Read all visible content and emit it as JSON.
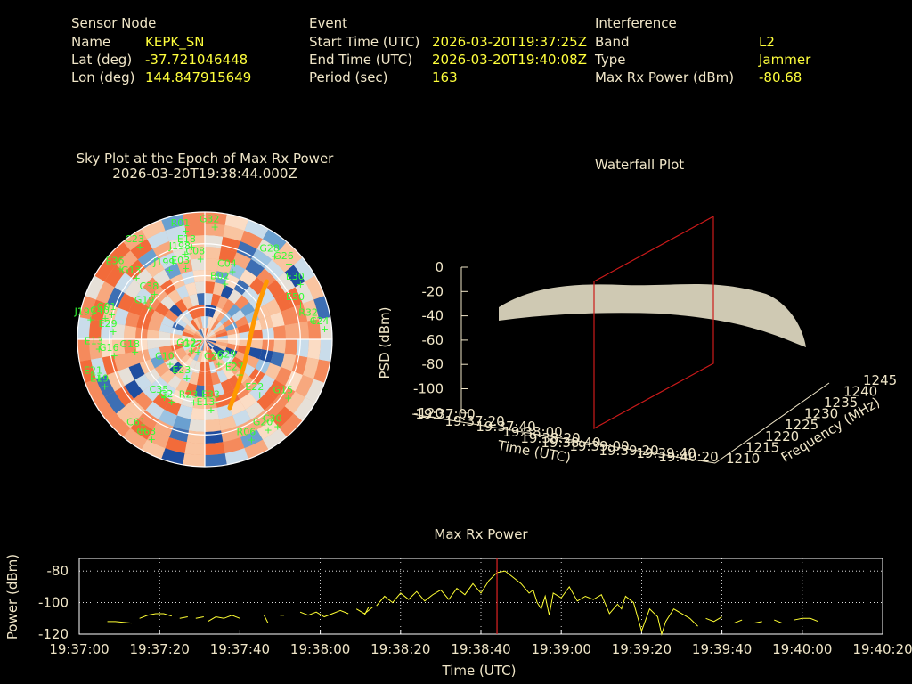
{
  "header": {
    "sensor": {
      "title": "Sensor Node",
      "name_label": "Name",
      "name": "KEPK_SN",
      "lat_label": "Lat (deg)",
      "lat": "-37.721046448",
      "lon_label": "Lon (deg)",
      "lon": "144.847915649"
    },
    "event": {
      "title": "Event",
      "start_label": "Start Time (UTC)",
      "start": "2026-03-20T19:37:25Z",
      "end_label": "End Time (UTC)",
      "end": "2026-03-20T19:40:08Z",
      "period_label": "Period (sec)",
      "period": "163"
    },
    "interference": {
      "title": "Interference",
      "band_label": "Band",
      "band": "L2",
      "type_label": "Type",
      "type": "Jammer",
      "power_label": "Max Rx Power (dBm)",
      "power": "-80.68"
    }
  },
  "chart_data": [
    {
      "type": "scatter",
      "title": "Sky Plot at the Epoch of Max Rx Power",
      "subtitle": "2026-03-20T19:38:44.000Z",
      "polar": true,
      "grid": true,
      "colors": {
        "satellite": "#33ff33",
        "track": "#ff9900",
        "heat_low": "#1f4ea0",
        "heat_high": "#ff7040"
      },
      "satellites": [
        {
          "id": "R01",
          "az": -10,
          "el": 12
        },
        {
          "id": "G32",
          "az": 5,
          "el": 10
        },
        {
          "id": "C23",
          "az": -35,
          "el": 10
        },
        {
          "id": "E18",
          "az": -8,
          "el": 24
        },
        {
          "id": "J198",
          "az": -13,
          "el": 28
        },
        {
          "id": "C08",
          "az": -3,
          "el": 33
        },
        {
          "id": "C04",
          "az": 22,
          "el": 38
        },
        {
          "id": "G28",
          "az": 40,
          "el": 13
        },
        {
          "id": "G26",
          "az": 48,
          "el": 10
        },
        {
          "id": "E30",
          "az": 60,
          "el": 12
        },
        {
          "id": "E36",
          "az": -50,
          "el": 12
        },
        {
          "id": "G13",
          "az": -48,
          "el": 25
        },
        {
          "id": "J199",
          "az": -27,
          "el": 35
        },
        {
          "id": "E03",
          "az": -15,
          "el": 38
        },
        {
          "id": "B02",
          "az": 20,
          "el": 48
        },
        {
          "id": "E50",
          "az": 70,
          "el": 18
        },
        {
          "id": "R32",
          "az": 80,
          "el": 12
        },
        {
          "id": "C24",
          "az": 85,
          "el": 5
        },
        {
          "id": "C38",
          "az": -48,
          "el": 42
        },
        {
          "id": "J193",
          "az": -80,
          "el": 8
        },
        {
          "id": "C40",
          "az": -78,
          "el": 18
        },
        {
          "id": "C01",
          "az": -75,
          "el": 22
        },
        {
          "id": "E29",
          "az": -85,
          "el": 25
        },
        {
          "id": "G18",
          "az": -100,
          "el": 40
        },
        {
          "id": "G19",
          "az": -60,
          "el": 45
        },
        {
          "id": "E13",
          "az": -95,
          "el": 15
        },
        {
          "id": "G16",
          "az": -100,
          "el": 25
        },
        {
          "id": "C29",
          "az": 130,
          "el": 65
        },
        {
          "id": "C20",
          "az": 150,
          "el": 70
        },
        {
          "id": "E27",
          "az": 135,
          "el": 55
        },
        {
          "id": "E33",
          "az": 170,
          "el": 45
        },
        {
          "id": "E22",
          "az": 135,
          "el": 35
        },
        {
          "id": "G15",
          "az": 125,
          "el": 18
        },
        {
          "id": "C10",
          "az": -125,
          "el": 60
        },
        {
          "id": "E23",
          "az": -155,
          "el": 60
        },
        {
          "id": "E21",
          "az": -110,
          "el": 10
        },
        {
          "id": "E19",
          "az": -115,
          "el": 12
        },
        {
          "id": "C35",
          "az": -145,
          "el": 40
        },
        {
          "id": "R23",
          "az": -170,
          "el": 45
        },
        {
          "id": "G2",
          "az": -152,
          "el": 40
        },
        {
          "id": "E13b",
          "label": "E13",
          "az": 175,
          "el": 40
        },
        {
          "id": "R06",
          "az": 155,
          "el": 12
        },
        {
          "id": "G20",
          "az": 145,
          "el": 12
        },
        {
          "id": "C61",
          "az": -145,
          "el": 12
        },
        {
          "id": "C63",
          "az": -152,
          "el": 10
        },
        {
          "id": "C30",
          "az": 140,
          "el": 10
        },
        {
          "id": "G12",
          "az": -130,
          "el": 78
        },
        {
          "id": "G27",
          "az": -150,
          "el": 80
        }
      ]
    },
    {
      "type": "area",
      "title": "Waterfall Plot",
      "xlabel": "Time (UTC)",
      "ylabel": "Frequency (MHz)",
      "zlabel": "PSD (dBm)",
      "x_ticks": [
        "19:37:00",
        "19:37:20",
        "19:37:40",
        "19:38:00",
        "19:38:20",
        "19:38:40",
        "19:39:00",
        "19:39:20",
        "19:39:40",
        "19:40:20"
      ],
      "y_ticks": [
        1210,
        1215,
        1220,
        1225,
        1230,
        1235,
        1240,
        1245
      ],
      "z_ticks": [
        0,
        -20,
        -40,
        -60,
        -80,
        -100,
        -120
      ],
      "zlim": [
        -120,
        0
      ],
      "marker_time": "19:38:44",
      "colors": {
        "surface_low": "#4a90c8",
        "surface_high": "#f6f2d8",
        "marker": "#cc1a1a"
      }
    },
    {
      "type": "line",
      "title": "Max Rx Power",
      "xlabel": "Time (UTC)",
      "ylabel": "Power (dBm)",
      "x_ticks": [
        "19:37:00",
        "19:37:20",
        "19:37:40",
        "19:38:00",
        "19:38:20",
        "19:38:40",
        "19:39:00",
        "19:39:20",
        "19:39:40",
        "19:40:00",
        "19:40:20"
      ],
      "y_ticks": [
        -80,
        -100,
        -120
      ],
      "xlim_sec": [
        0,
        200
      ],
      "ylim": [
        -120,
        -72
      ],
      "grid": true,
      "marker_sec": 104,
      "colors": {
        "line": "#ffff33",
        "marker": "#dd2222",
        "grid": "#ffffff"
      },
      "series": [
        {
          "segments": [
            [
              [
                7,
                -112
              ],
              [
                9,
                -112
              ],
              [
                11,
                -112.5
              ],
              [
                13,
                -113
              ]
            ],
            [
              [
                15,
                -110
              ],
              [
                17,
                -108
              ],
              [
                19,
                -107
              ],
              [
                21,
                -107
              ],
              [
                23,
                -108.5
              ]
            ],
            [
              [
                25,
                -110
              ],
              [
                27,
                -109
              ]
            ],
            [
              [
                29,
                -110
              ],
              [
                31,
                -109
              ]
            ],
            [
              [
                32,
                -112
              ],
              [
                34,
                -109
              ],
              [
                36,
                -110
              ],
              [
                38,
                -108
              ],
              [
                40,
                -110
              ]
            ],
            [
              [
                46,
                -108
              ],
              [
                47,
                -113
              ]
            ],
            [
              [
                50,
                -108
              ],
              [
                51,
                -108
              ]
            ],
            [
              [
                55,
                -106
              ],
              [
                57,
                -108
              ],
              [
                59,
                -106
              ],
              [
                61,
                -109
              ],
              [
                63,
                -107
              ],
              [
                65,
                -105
              ],
              [
                67,
                -107
              ]
            ],
            [
              [
                69,
                -104
              ],
              [
                71,
                -107
              ],
              [
                73,
                -103
              ]
            ],
            [
              [
                71,
                -108
              ],
              [
                72,
                -103
              ]
            ],
            [
              [
                74,
                -102
              ],
              [
                76,
                -96
              ],
              [
                78,
                -100
              ],
              [
                80,
                -94
              ],
              [
                82,
                -98
              ],
              [
                84,
                -93
              ],
              [
                86,
                -99
              ],
              [
                88,
                -95
              ],
              [
                90,
                -92
              ],
              [
                92,
                -98
              ],
              [
                94,
                -91
              ],
              [
                96,
                -95
              ],
              [
                98,
                -88
              ],
              [
                100,
                -94
              ],
              [
                102,
                -86
              ],
              [
                104,
                -81
              ],
              [
                106,
                -80
              ],
              [
                108,
                -84
              ],
              [
                110,
                -88
              ],
              [
                112,
                -94
              ],
              [
                113,
                -92
              ],
              [
                114,
                -100
              ],
              [
                115,
                -104
              ],
              [
                116,
                -96
              ],
              [
                117,
                -108
              ],
              [
                118,
                -94
              ],
              [
                120,
                -97
              ],
              [
                122,
                -90
              ],
              [
                124,
                -99
              ],
              [
                126,
                -96
              ],
              [
                128,
                -98
              ],
              [
                130,
                -95
              ],
              [
                132,
                -107
              ],
              [
                134,
                -101
              ],
              [
                135,
                -104
              ],
              [
                136,
                -96
              ],
              [
                138,
                -100
              ],
              [
                140,
                -118
              ],
              [
                142,
                -104
              ],
              [
                144,
                -109
              ],
              [
                145,
                -120
              ],
              [
                146,
                -112
              ],
              [
                148,
                -104
              ],
              [
                150,
                -107
              ],
              [
                152,
                -110
              ],
              [
                154,
                -115
              ]
            ],
            [
              [
                156,
                -110
              ],
              [
                158,
                -112
              ],
              [
                160,
                -109
              ]
            ],
            [
              [
                163,
                -113
              ],
              [
                165,
                -111
              ]
            ],
            [
              [
                168,
                -113
              ],
              [
                170,
                -112
              ]
            ],
            [
              [
                173,
                -111
              ],
              [
                175,
                -113
              ]
            ],
            [
              [
                178,
                -111
              ],
              [
                180,
                -110
              ],
              [
                182,
                -110
              ],
              [
                184,
                -112
              ]
            ]
          ]
        }
      ]
    }
  ]
}
